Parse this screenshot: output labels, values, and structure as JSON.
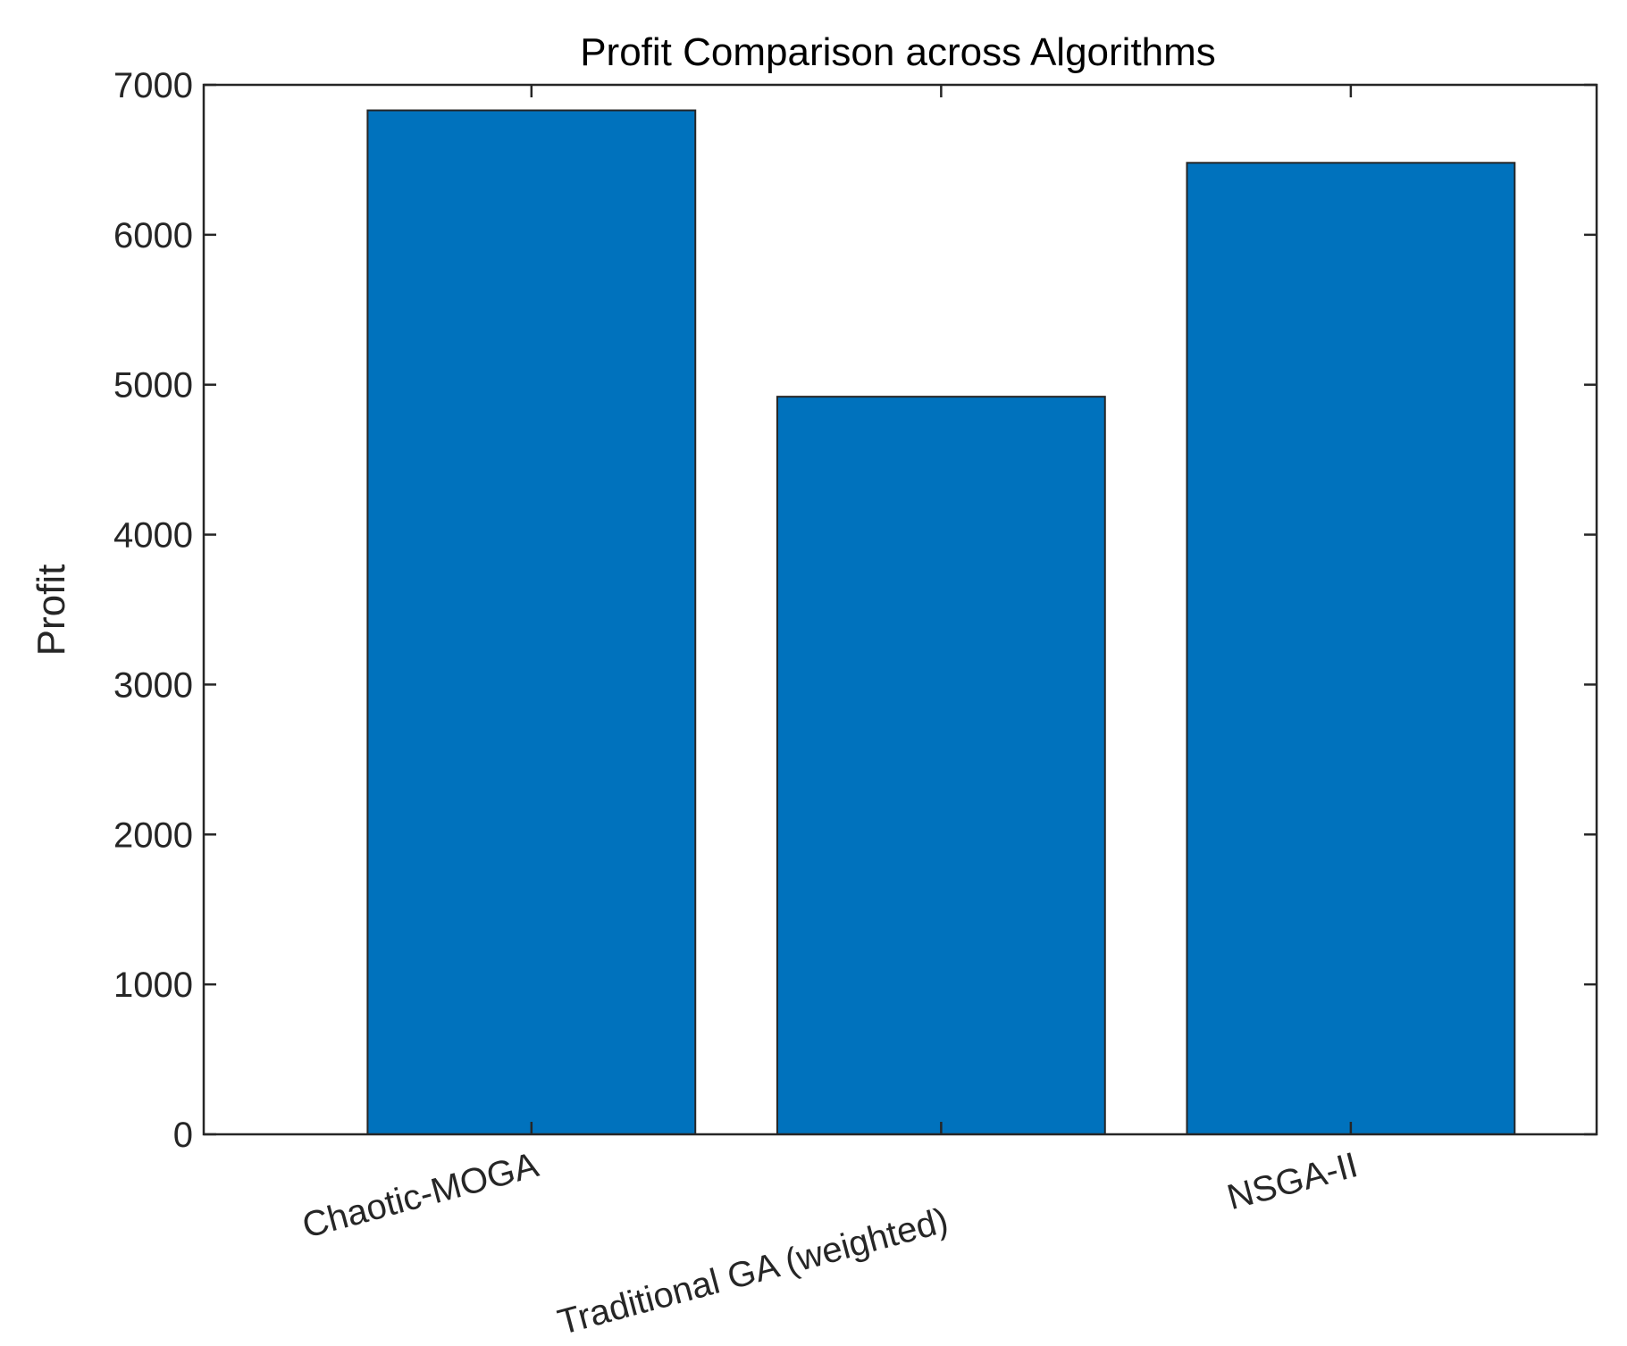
{
  "chart_data": {
    "type": "bar",
    "title": "Profit Comparison across Algorithms",
    "xlabel": "",
    "ylabel": "Profit",
    "categories": [
      "Chaotic-MOGA",
      "Traditional GA (weighted)",
      "NSGA-II"
    ],
    "values": [
      6830,
      4920,
      6480
    ],
    "ylim": [
      0,
      7000
    ],
    "xlim": [
      0.2,
      3.6
    ],
    "yticks": [
      0,
      1000,
      2000,
      3000,
      4000,
      5000,
      6000,
      7000
    ],
    "grid": false,
    "colors": {
      "bar": "#0072bd",
      "axis": "#262626",
      "text": "#262626"
    }
  }
}
